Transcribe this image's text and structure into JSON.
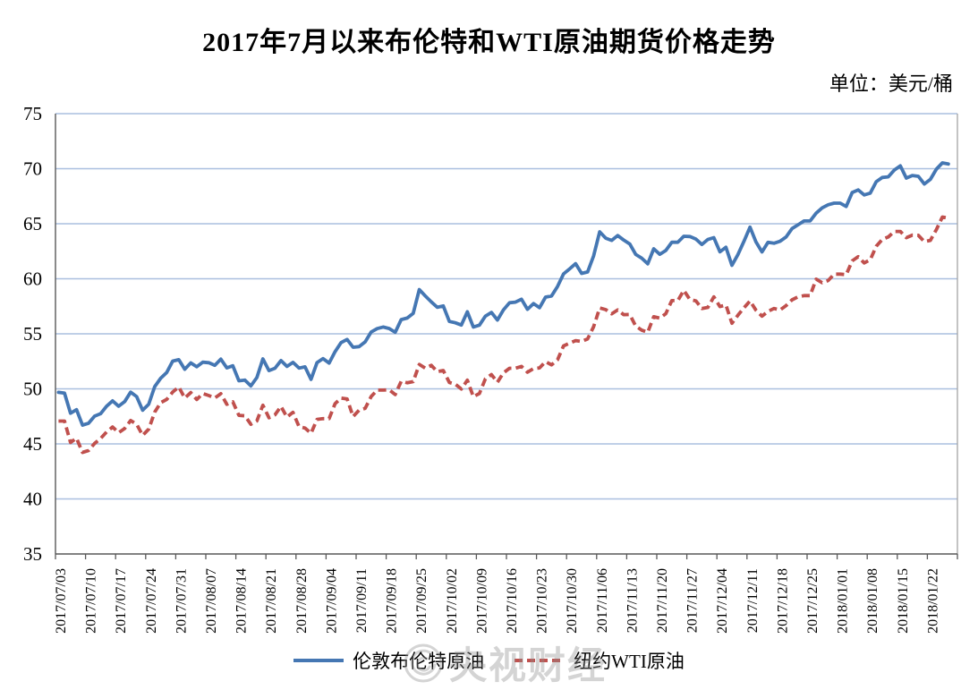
{
  "title": "2017年7月以来布伦特和WTI原油期货价格走势",
  "unit_label": "单位：美元/桶",
  "watermark": "央视财经",
  "colors": {
    "brent": "#4577B3",
    "wti": "#C0504D",
    "gridline": "#AABFDF",
    "axis": "#595959",
    "plot_right_border": "#A3A3A3",
    "title_text": "#000000",
    "watermark": "#8F8F8F"
  },
  "chart_data": {
    "type": "line",
    "title": "2017年7月以来布伦特和WTI原油期货价格走势",
    "unit": "美元/桶",
    "ylabel": "",
    "xlabel": "",
    "ylim": [
      35,
      75
    ],
    "yticks": [
      35,
      40,
      45,
      50,
      55,
      60,
      65,
      70,
      75
    ],
    "grid": "horizontal",
    "legend_position": "bottom",
    "points_per_week": 5,
    "week_labels": [
      "2017/07/03",
      "2017/07/10",
      "2017/07/17",
      "2017/07/24",
      "2017/07/31",
      "2017/08/07",
      "2017/08/14",
      "2017/08/21",
      "2017/08/28",
      "2017/09/04",
      "2017/09/11",
      "2017/09/18",
      "2017/09/25",
      "2017/10/02",
      "2017/10/09",
      "2017/10/16",
      "2017/10/23",
      "2017/10/30",
      "2017/11/06",
      "2017/11/13",
      "2017/11/20",
      "2017/11/27",
      "2017/12/04",
      "2017/12/11",
      "2017/12/18",
      "2017/12/25",
      "2018/01/01",
      "2018/01/08",
      "2018/01/15",
      "2018/01/22"
    ],
    "series": [
      {
        "name": "伦敦布伦特原油",
        "color": "#4577B3",
        "style": "solid",
        "values": [
          49.68,
          49.61,
          47.79,
          48.11,
          46.71,
          46.88,
          47.52,
          47.74,
          48.42,
          48.91,
          48.42,
          48.84,
          49.7,
          49.3,
          48.06,
          48.6,
          50.2,
          50.97,
          51.49,
          52.52,
          52.65,
          51.78,
          52.36,
          52.01,
          52.42,
          52.37,
          52.14,
          52.7,
          51.9,
          52.1,
          50.73,
          50.8,
          50.27,
          51.03,
          52.72,
          51.66,
          51.87,
          52.57,
          52.04,
          52.41,
          51.89,
          52.0,
          50.86,
          52.38,
          52.75,
          52.34,
          53.38,
          54.2,
          54.49,
          53.78,
          53.84,
          54.27,
          55.16,
          55.47,
          55.62,
          55.48,
          55.14,
          56.29,
          56.43,
          56.86,
          59.02,
          58.44,
          57.9,
          57.41,
          57.54,
          56.12,
          56.0,
          55.8,
          57.0,
          55.62,
          55.79,
          56.61,
          56.94,
          56.25,
          57.17,
          57.82,
          57.88,
          58.15,
          57.23,
          57.75,
          57.37,
          58.33,
          58.44,
          59.3,
          60.44,
          60.9,
          61.37,
          60.49,
          60.62,
          62.07,
          64.27,
          63.69,
          63.49,
          63.93,
          63.52,
          63.16,
          62.21,
          61.87,
          61.36,
          62.72,
          62.22,
          62.57,
          63.32,
          63.32,
          63.86,
          63.84,
          63.61,
          63.11,
          63.57,
          63.73,
          62.45,
          62.86,
          61.22,
          62.2,
          63.4,
          64.69,
          63.34,
          62.44,
          63.31,
          63.23,
          63.41,
          63.8,
          64.56,
          64.9,
          65.25,
          65.25,
          65.96,
          66.44,
          66.72,
          66.87,
          66.87,
          66.57,
          67.84,
          68.07,
          67.62,
          67.78,
          68.82,
          69.2,
          69.26,
          69.87,
          70.26,
          69.15,
          69.38,
          69.31,
          68.61,
          69.03,
          69.96,
          70.53,
          70.42
        ]
      },
      {
        "name": "纽约WTI原油",
        "color": "#C0504D",
        "style": "dashed",
        "values": [
          47.07,
          47.07,
          45.13,
          45.52,
          44.23,
          44.4,
          45.04,
          45.49,
          46.08,
          46.54,
          46.02,
          46.4,
          47.12,
          46.79,
          45.77,
          46.34,
          47.89,
          48.75,
          49.04,
          49.71,
          50.17,
          49.16,
          49.66,
          49.03,
          49.58,
          49.39,
          49.17,
          49.56,
          48.59,
          48.82,
          47.59,
          47.55,
          46.78,
          47.09,
          48.51,
          47.37,
          47.64,
          48.41,
          47.43,
          47.87,
          46.57,
          46.44,
          45.96,
          47.23,
          47.29,
          47.29,
          48.66,
          49.16,
          49.09,
          47.48,
          48.07,
          48.23,
          49.3,
          49.89,
          49.89,
          49.91,
          49.48,
          50.69,
          50.55,
          50.66,
          52.22,
          51.88,
          52.14,
          51.56,
          51.67,
          50.58,
          50.42,
          49.98,
          50.79,
          49.29,
          49.58,
          50.92,
          51.3,
          50.6,
          51.45,
          51.87,
          51.88,
          52.04,
          51.51,
          51.84,
          51.9,
          52.47,
          52.18,
          52.64,
          53.9,
          54.15,
          54.38,
          54.3,
          54.54,
          55.64,
          57.35,
          57.2,
          56.81,
          57.17,
          56.74,
          56.76,
          55.7,
          55.33,
          55.14,
          56.55,
          56.42,
          56.83,
          58.02,
          58.02,
          58.95,
          58.11,
          57.99,
          57.3,
          57.4,
          58.36,
          57.47,
          57.62,
          55.96,
          56.69,
          57.36,
          57.99,
          57.14,
          56.6,
          57.04,
          57.3,
          57.16,
          57.56,
          58.09,
          58.36,
          58.47,
          58.47,
          59.97,
          59.64,
          59.84,
          60.42,
          60.42,
          60.37,
          61.63,
          62.01,
          61.44,
          61.73,
          62.96,
          63.57,
          63.8,
          64.3,
          64.3,
          63.73,
          63.97,
          63.95,
          63.37,
          63.49,
          64.47,
          65.61,
          65.51
        ]
      }
    ]
  }
}
